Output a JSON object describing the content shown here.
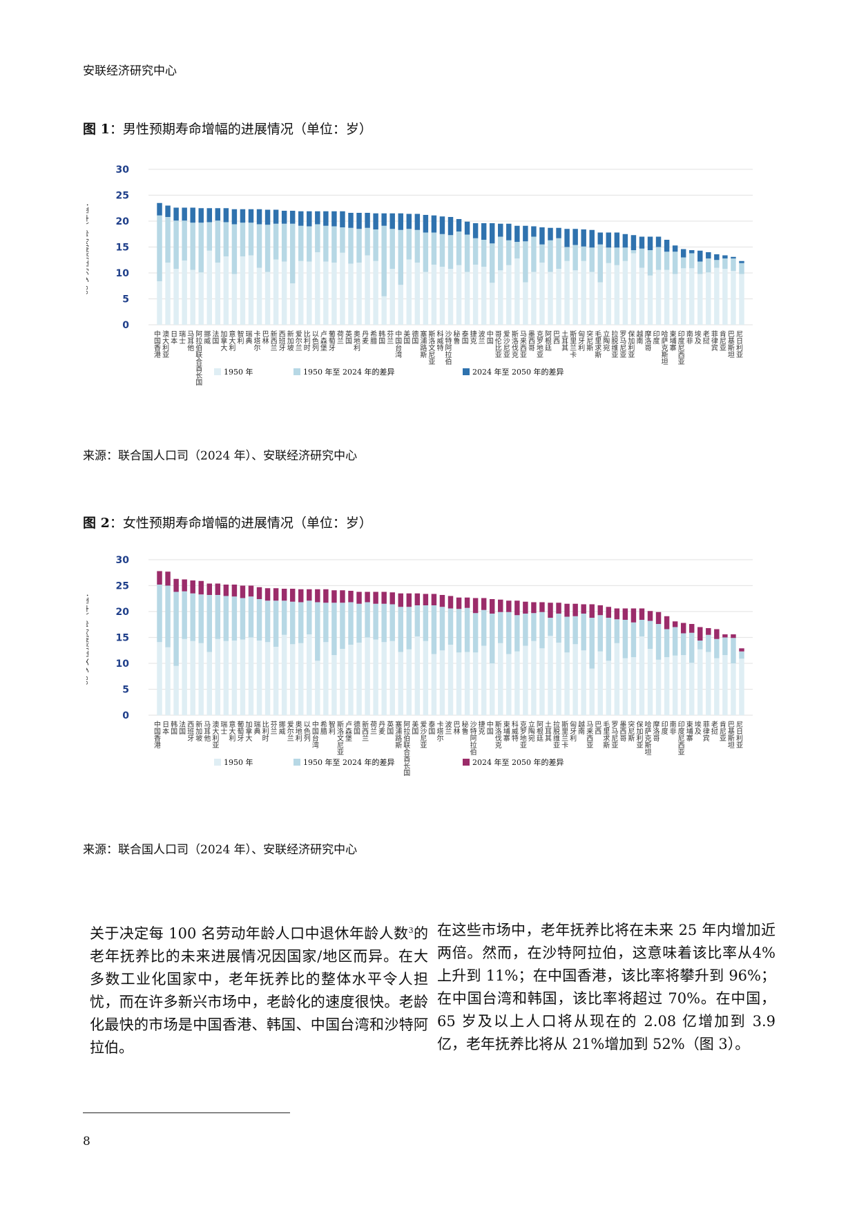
{
  "header": "安联经济研究中心",
  "figures": [
    {
      "label": "图 1",
      "title": "：男性预期寿命增幅的进展情况（单位：岁）",
      "source": "来源：联合国人口司（2024 年）、安联经济研究中心",
      "ylabel": "65 岁男性预期寿命（单位：",
      "colors": {
        "base": "#dfeef4",
        "mid": "#b7d8e5",
        "top": "#2f72ae"
      },
      "legend": [
        "1950 年",
        "1950 年至 2024 年的差异",
        "2024 年至 2050 年的差异"
      ]
    },
    {
      "label": "图 2",
      "title": "：女性预期寿命增幅的进展情况（单位：岁）",
      "source": "来源：联合国人口司（2024 年）、安联经济研究中心",
      "ylabel": "65 岁女性预期寿命（单位：",
      "colors": {
        "base": "#dfeef4",
        "mid": "#b7d8e5",
        "top": "#9b2c6a"
      },
      "legend": [
        "1950 年",
        "1950 年至 2024 年的差异",
        "2024 年至 2050 年的差异"
      ]
    }
  ],
  "chart_data": [
    {
      "type": "bar",
      "stacked": true,
      "title": "图 1：男性预期寿命增幅的进展情况（单位：岁）",
      "ylabel": "65 岁男性预期寿命（单位：",
      "xlabel": "",
      "ylim": [
        0,
        30
      ],
      "yticks": [
        0,
        5,
        10,
        15,
        20,
        25,
        30
      ],
      "grid": true,
      "legend_position": "bottom",
      "categories": [
        "中国香港",
        "澳大利亚",
        "日本",
        "瑞士",
        "马耳他",
        "阿拉伯联合酋长国",
        "挪威",
        "法国",
        "加拿大",
        "意大利",
        "智利",
        "瑞典",
        "卡塔尔",
        "巴林",
        "新西兰",
        "西班牙",
        "新加坡",
        "爱尔兰",
        "比利时",
        "以色列",
        "卢森堡",
        "葡萄牙",
        "荷兰",
        "英国",
        "奥地利",
        "丹麦",
        "希腊",
        "韩国",
        "芬兰",
        "中国台湾",
        "美国",
        "德国",
        "塞浦路斯",
        "斯洛文尼亚",
        "科威特",
        "沙特阿拉伯",
        "秘鲁",
        "泰国",
        "捷克",
        "波兰",
        "中国",
        "哥伦比亚",
        "爱沙尼亚",
        "斯洛伐克",
        "马来西亚",
        "墨西哥",
        "克罗地亚",
        "阿根廷",
        "巴西",
        "土耳其",
        "斯里兰卡",
        "匈牙利",
        "突尼斯",
        "毛里求斯",
        "立陶宛",
        "拉脱维亚",
        "罗马尼亚",
        "保加利亚",
        "越南",
        "摩洛哥",
        "印度",
        "哈萨克斯坦",
        "柬埔寨",
        "印度尼西亚",
        "南非",
        "埃及",
        "老挝",
        "菲律宾",
        "肯尼亚",
        "巴基斯坦",
        "尼日利亚"
      ],
      "series": [
        {
          "name": "1950 年",
          "values": [
            8.4,
            12.0,
            10.8,
            12.4,
            10.6,
            10.1,
            14.3,
            12.0,
            13.2,
            9.8,
            13.2,
            13.4,
            11.0,
            10.2,
            12.6,
            12.2,
            8.0,
            12.3,
            12.2,
            14.0,
            12.2,
            12.0,
            13.9,
            11.8,
            12.0,
            13.4,
            12.3,
            5.5,
            10.8,
            7.7,
            12.6,
            12.0,
            10.2,
            11.6,
            11.2,
            10.8,
            11.5,
            10.2,
            11.6,
            11.2,
            8.1,
            10.5,
            11.5,
            12.8,
            8.2,
            10.2,
            12.0,
            10.2,
            10.8,
            12.3,
            10.5,
            12.3,
            10.2,
            8.2,
            11.9,
            11.5,
            12.3,
            13.8,
            11.0,
            9.5,
            10.6,
            10.6,
            9.8,
            10.9,
            10.9,
            9.8,
            10.1,
            11.0,
            10.8,
            10.4,
            9.8
          ]
        },
        {
          "name": "1950 年至 2024 年的差异",
          "values": [
            12.7,
            8.8,
            9.3,
            7.7,
            9.1,
            9.6,
            5.5,
            8.1,
            6.6,
            9.6,
            6.5,
            6.3,
            8.4,
            9.1,
            6.9,
            7.3,
            11.5,
            6.8,
            6.8,
            5.4,
            6.9,
            7.0,
            4.9,
            6.9,
            6.5,
            5.3,
            6.1,
            13.6,
            7.7,
            10.6,
            5.9,
            6.3,
            7.6,
            6.2,
            6.3,
            6.5,
            6.5,
            7.2,
            5.1,
            5.2,
            7.6,
            6.5,
            4.8,
            3.2,
            7.9,
            6.8,
            3.5,
            6.1,
            5.9,
            2.7,
            4.9,
            2.8,
            4.7,
            7.3,
            3.0,
            3.4,
            2.6,
            0.6,
            3.7,
            4.9,
            4.4,
            3.5,
            4.3,
            2.1,
            2.9,
            2.4,
            2.7,
            1.5,
            2.0,
            2.4,
            2.1
          ]
        },
        {
          "name": "2024 年至 2050 年的差异",
          "values": [
            2.4,
            2.2,
            2.5,
            2.5,
            2.9,
            2.8,
            2.7,
            2.4,
            2.7,
            2.9,
            2.6,
            2.6,
            2.9,
            2.9,
            2.7,
            2.5,
            2.5,
            2.8,
            2.9,
            2.5,
            2.8,
            2.9,
            3.1,
            2.9,
            3.1,
            2.9,
            3.1,
            2.4,
            3.0,
            3.2,
            2.9,
            3.1,
            3.4,
            3.3,
            3.4,
            3.5,
            2.4,
            2.5,
            2.9,
            3.2,
            3.9,
            2.5,
            3.2,
            3.1,
            3.0,
            2.0,
            3.3,
            2.4,
            2.0,
            3.5,
            3.1,
            3.3,
            3.4,
            2.3,
            2.9,
            2.9,
            2.6,
            2.9,
            2.3,
            2.6,
            2.0,
            2.3,
            1.2,
            1.6,
            0.6,
            2.1,
            1.2,
            1.1,
            0.6,
            0.3,
            0.4
          ]
        }
      ]
    },
    {
      "type": "bar",
      "stacked": true,
      "title": "图 2：女性预期寿命增幅的进展情况（单位：岁）",
      "ylabel": "65 岁女性预期寿命（单位：",
      "xlabel": "",
      "ylim": [
        0,
        30
      ],
      "yticks": [
        0,
        5,
        10,
        15,
        20,
        25,
        30
      ],
      "grid": true,
      "legend_position": "bottom",
      "categories": [
        "中国香港",
        "日本",
        "韩国",
        "法国",
        "西班牙",
        "新加坡",
        "马耳他",
        "澳大利亚",
        "瑞士",
        "意大利",
        "葡萄牙",
        "加拿大",
        "瑞典",
        "比利时",
        "芬兰",
        "挪威",
        "爱尔兰",
        "奥地利",
        "以色列",
        "中国台湾",
        "希腊",
        "智利",
        "斯洛文尼亚",
        "卢森堡",
        "德国",
        "新西兰",
        "荷兰",
        "丹麦",
        "英国",
        "塞浦路斯",
        "阿拉伯联合酋长国",
        "美国",
        "爱沙尼亚",
        "泰国",
        "卡塔尔",
        "波兰",
        "巴林",
        "秘鲁",
        "沙特阿拉伯",
        "捷克",
        "中国",
        "斯洛伐克",
        "柬埔寨",
        "科威特",
        "克罗地亚",
        "立陶宛",
        "阿根廷",
        "土耳其",
        "拉脱维亚",
        "斯里兰卡",
        "匈牙利",
        "越南",
        "马来西亚",
        "巴西",
        "毛里求斯",
        "罗马尼亚",
        "墨西哥",
        "突尼斯",
        "保加利亚",
        "哈萨克斯坦",
        "摩洛哥",
        "印度",
        "南非",
        "印度尼西亚",
        "柬埔寨",
        "埃及",
        "菲律宾",
        "老挝",
        "肯尼亚",
        "巴基斯坦",
        "尼日利亚"
      ],
      "series": [
        {
          "name": "1950 年",
          "values": [
            14.1,
            13.1,
            9.5,
            14.7,
            14.3,
            13.9,
            12.2,
            14.7,
            14.3,
            14.4,
            14.6,
            15.0,
            14.4,
            14.1,
            13.2,
            15.5,
            13.7,
            13.9,
            15.6,
            10.5,
            14.1,
            11.6,
            12.8,
            13.6,
            14.0,
            15.0,
            14.6,
            14.1,
            14.3,
            12.2,
            12.7,
            15.2,
            14.3,
            11.8,
            12.5,
            13.6,
            12.1,
            12.2,
            12.1,
            13.4,
            10.0,
            13.9,
            11.8,
            12.3,
            13.4,
            14.3,
            12.9,
            15.3,
            14.0,
            12.1,
            13.7,
            12.5,
            9.0,
            12.3,
            10.5,
            13.9,
            11.0,
            11.2,
            15.2,
            12.8,
            10.7,
            11.2,
            11.5,
            11.6,
            10.1,
            12.7,
            12.2,
            11.0,
            11.6,
            10.0,
            10.9
          ]
        },
        {
          "name": "1950 年至 2024 年的差异",
          "values": [
            11.1,
            11.9,
            14.3,
            9.2,
            9.2,
            9.4,
            11.0,
            8.5,
            8.7,
            8.5,
            8.0,
            7.9,
            8.0,
            8.0,
            8.9,
            6.6,
            8.2,
            7.9,
            6.5,
            11.3,
            7.6,
            10.1,
            8.9,
            8.2,
            7.5,
            6.8,
            6.9,
            7.4,
            7.1,
            8.7,
            8.2,
            6.0,
            6.9,
            9.4,
            8.4,
            7.0,
            8.4,
            8.5,
            7.6,
            6.9,
            9.6,
            6.0,
            8.1,
            7.0,
            6.2,
            5.4,
            7.0,
            3.5,
            5.6,
            6.9,
            5.4,
            7.1,
            9.8,
            7.0,
            8.3,
            4.6,
            7.4,
            6.7,
            3.2,
            5.4,
            6.9,
            5.4,
            5.5,
            4.2,
            5.8,
            1.7,
            3.3,
            3.7,
            3.4,
            4.9,
            1.4
          ]
        },
        {
          "name": "2024 年至 2050 年的差异",
          "values": [
            2.6,
            2.7,
            2.5,
            2.3,
            2.5,
            2.6,
            2.2,
            2.2,
            2.2,
            2.3,
            2.4,
            2.1,
            2.3,
            2.4,
            2.4,
            2.3,
            2.5,
            2.5,
            2.2,
            2.5,
            2.6,
            2.4,
            2.4,
            2.2,
            2.3,
            2.0,
            2.3,
            2.3,
            2.3,
            2.6,
            2.6,
            2.3,
            2.2,
            2.2,
            2.3,
            2.4,
            2.2,
            2.0,
            2.9,
            2.3,
            2.8,
            2.4,
            2.2,
            2.8,
            2.3,
            2.1,
            1.9,
            2.9,
            2.1,
            2.5,
            2.4,
            1.8,
            2.6,
            1.9,
            2.1,
            2.1,
            2.2,
            2.7,
            2.2,
            1.9,
            2.3,
            2.5,
            1.1,
            2.0,
            1.7,
            2.6,
            1.3,
            1.9,
            0.6,
            0.7,
            0.6
          ]
        }
      ]
    }
  ],
  "body": {
    "left_paragraph": "关于决定每 100 名劳动年龄人口中退休年龄人数",
    "left_footnote": "3",
    "left_paragraph_rest": "的老年抚养比的未来进展情况因国家/地区而异。在大多数工业化国家中，老年抚养比的整体水平令人担忧，而在许多新兴市场中，老龄化的速度很快。老龄化最快的市场是中国香港、韩国、中国台湾和沙特阿拉伯。",
    "right_paragraph": "在这些市场中，老年抚养比将在未来 25 年内增加近两倍。然而，在沙特阿拉伯，这意味着该比率从4%上升到 11%；在中国香港，该比率将攀升到 96%；在中国台湾和韩国，该比率将超过 70%。在中国，65 岁及以上人口将从现在的 2.08 亿增加到 3.9 亿，老年抚养比将从 21%增加到 52%（图 3）。"
  },
  "page_number": "8"
}
